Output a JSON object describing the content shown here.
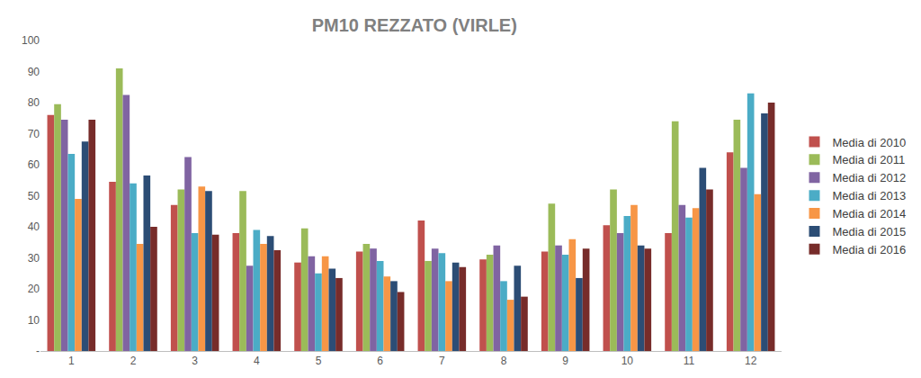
{
  "chart_data": {
    "type": "bar",
    "title": "PM10 REZZATO (VIRLE)",
    "categories": [
      "1",
      "2",
      "3",
      "4",
      "5",
      "6",
      "7",
      "8",
      "9",
      "10",
      "11",
      "12"
    ],
    "series": [
      {
        "name": "Media di 2010",
        "color": "#c0504d",
        "values": [
          76,
          54.5,
          47,
          38,
          28.5,
          32,
          42,
          29.5,
          32,
          40.5,
          38,
          64
        ]
      },
      {
        "name": "Media di 2011",
        "color": "#9bbb59",
        "values": [
          79.5,
          91,
          52,
          51.5,
          39.5,
          34.5,
          29,
          31,
          47.5,
          52,
          74,
          74.5
        ]
      },
      {
        "name": "Media di 2012",
        "color": "#8064a2",
        "values": [
          74.5,
          82.5,
          62.5,
          27.5,
          30.5,
          33,
          33,
          34,
          34,
          38,
          47,
          59
        ]
      },
      {
        "name": "Media di 2013",
        "color": "#4bacc6",
        "values": [
          63.5,
          54,
          38,
          39,
          25,
          29,
          31.5,
          22.5,
          31,
          43.5,
          43,
          83
        ]
      },
      {
        "name": "Media di 2014",
        "color": "#f79646",
        "values": [
          49,
          34.5,
          53,
          34.5,
          30.5,
          24,
          22.5,
          16.5,
          36,
          47,
          46,
          50.5
        ]
      },
      {
        "name": "Media di 2015",
        "color": "#2c4d75",
        "values": [
          67.5,
          56.5,
          51.5,
          37,
          26.5,
          22.5,
          28.5,
          27.5,
          23.5,
          34,
          59,
          76.5
        ]
      },
      {
        "name": "Media di 2016",
        "color": "#772c2a",
        "values": [
          74.5,
          40,
          37.5,
          32.5,
          23.5,
          19,
          27,
          17.5,
          33,
          33,
          52,
          80
        ]
      }
    ],
    "ylim": [
      0,
      100
    ],
    "yticks": [
      {
        "value": 0,
        "label": "-"
      },
      10,
      20,
      30,
      40,
      50,
      60,
      70,
      80,
      90,
      100
    ],
    "grid": false,
    "legend": "right"
  }
}
